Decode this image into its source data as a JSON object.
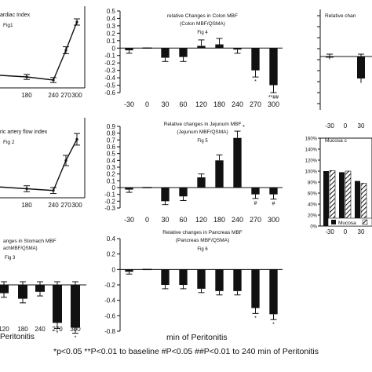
{
  "footnote": "*p<0.05 **P<0.01 to baseline #P<0.05 ##P<0.01 to 240 min of Peritonitis",
  "bottom_xlabel": "min of Peritonitis",
  "left_xlabel_fragment": "Peritonitis",
  "legend_mucosa": "Mucosa",
  "chart_data": [
    {
      "id": "fig4",
      "type": "bar",
      "title": "relative Changes in Colon MBF",
      "subtitle": "(Colon MBF/QSMA)",
      "fig_label": "Fig 4",
      "categories": [
        "-30",
        "0",
        "30",
        "60",
        "120",
        "180",
        "240",
        "270",
        "300"
      ],
      "values": [
        -0.03,
        0,
        -0.13,
        -0.12,
        0.03,
        0.05,
        -0.02,
        -0.3,
        -0.5
      ],
      "errors": [
        0.04,
        0,
        0.05,
        0.06,
        0.08,
        0.08,
        0.05,
        0.09,
        0.1
      ],
      "annotations": [
        "",
        "",
        "",
        "",
        "",
        "",
        "",
        "*",
        "**##"
      ],
      "yticks": [
        -0.6,
        -0.5,
        -0.4,
        -0.3,
        -0.2,
        -0.1,
        0,
        0.1,
        0.2,
        0.3,
        0.4,
        0.5
      ],
      "ylim": [
        -0.6,
        0.5
      ]
    },
    {
      "id": "fig5",
      "type": "bar",
      "title": "Relative changes in Jejunum MBF",
      "subtitle": "(Jejunum MBF/QSMA)",
      "fig_label": "Fig 5",
      "categories": [
        "-30",
        "0",
        "30",
        "60",
        "120",
        "180",
        "240",
        "270",
        "300"
      ],
      "values": [
        -0.03,
        0,
        -0.2,
        -0.13,
        0.15,
        0.4,
        0.73,
        -0.1,
        -0.1
      ],
      "errors": [
        0.04,
        0,
        0.05,
        0.06,
        0.05,
        0.08,
        0.1,
        0.06,
        0.07
      ],
      "annotations": [
        "",
        "",
        "",
        "",
        "",
        "",
        "*",
        "#",
        "#"
      ],
      "yticks": [
        -0.3,
        -0.2,
        -0.1,
        0,
        0.1,
        0.2,
        0.3,
        0.4,
        0.5,
        0.6,
        0.7,
        0.8,
        0.9
      ],
      "ylim": [
        -0.3,
        0.9
      ]
    },
    {
      "id": "fig6",
      "type": "bar",
      "title": "Relative changes in Pancreas MBF",
      "subtitle": "(Pancreas MBF/QSMA)",
      "fig_label": "Fig 6",
      "categories": [
        "-30",
        "0",
        "30",
        "60",
        "120",
        "180",
        "240",
        "270",
        "300"
      ],
      "values": [
        -0.03,
        0,
        -0.2,
        -0.2,
        -0.25,
        -0.28,
        -0.28,
        -0.5,
        -0.58
      ],
      "errors": [
        0.03,
        0,
        0.05,
        0.05,
        0.05,
        0.05,
        0.05,
        0.07,
        0.07
      ],
      "annotations": [
        "",
        "",
        "",
        "",
        "",
        "",
        "",
        "*",
        "*"
      ],
      "yticks": [
        -0.8,
        -0.6,
        -0.4,
        -0.2,
        0,
        0.2,
        0.4
      ],
      "ylim": [
        -0.8,
        0.4
      ]
    },
    {
      "id": "fig1",
      "type": "line",
      "title": "ardiac Index",
      "fig_label": "Fig1",
      "x": [
        "180",
        "240",
        "270",
        "300"
      ],
      "values": [
        -0.1,
        -0.2,
        0.75,
        1.65
      ],
      "errors": [
        0.03,
        0.03,
        0.06,
        0.05
      ]
    },
    {
      "id": "fig2",
      "type": "line",
      "title": "ric artery flow index",
      "fig_label": "Fig 2",
      "x": [
        "180",
        "240",
        "270",
        "300"
      ],
      "values": [
        -0.1,
        -0.15,
        0.7,
        1.3
      ],
      "errors": [
        0.04,
        0.04,
        0.1,
        0.12
      ]
    },
    {
      "id": "fig3",
      "type": "bar",
      "title": "anges in Stomach MBF",
      "subtitle": "achMBF/QSMA)",
      "fig_label": "Fig 3",
      "categories": [
        "120",
        "180",
        "240",
        "270",
        "300"
      ],
      "values": [
        -0.12,
        -0.2,
        -0.1,
        -0.55,
        -0.62
      ],
      "errors": [
        0.06,
        0.06,
        0.06,
        0.08,
        0.08
      ],
      "annotations": [
        "",
        "",
        "",
        "*",
        "*"
      ]
    },
    {
      "id": "fig_right_top",
      "type": "bar",
      "title": "Relative chan",
      "categories": [
        "-30",
        "0",
        "30"
      ],
      "values": [
        -0.02,
        0,
        -0.4
      ],
      "errors": [
        0.03,
        0,
        0.08
      ]
    },
    {
      "id": "fig_right_mucosa",
      "type": "bar",
      "title": "Mucosa c",
      "yticks": [
        "0%",
        "20%",
        "40%",
        "60%",
        "80%",
        "100%",
        "120%",
        "140%",
        "160%"
      ],
      "ylim": [
        0,
        160
      ],
      "categories": [
        "-30",
        "0",
        "30"
      ],
      "series": [
        {
          "name": "Mucosa",
          "values": [
            100,
            98,
            82
          ]
        },
        {
          "values": [
            101,
            100,
            78
          ]
        }
      ],
      "legend": [
        "Mucosa"
      ]
    }
  ]
}
